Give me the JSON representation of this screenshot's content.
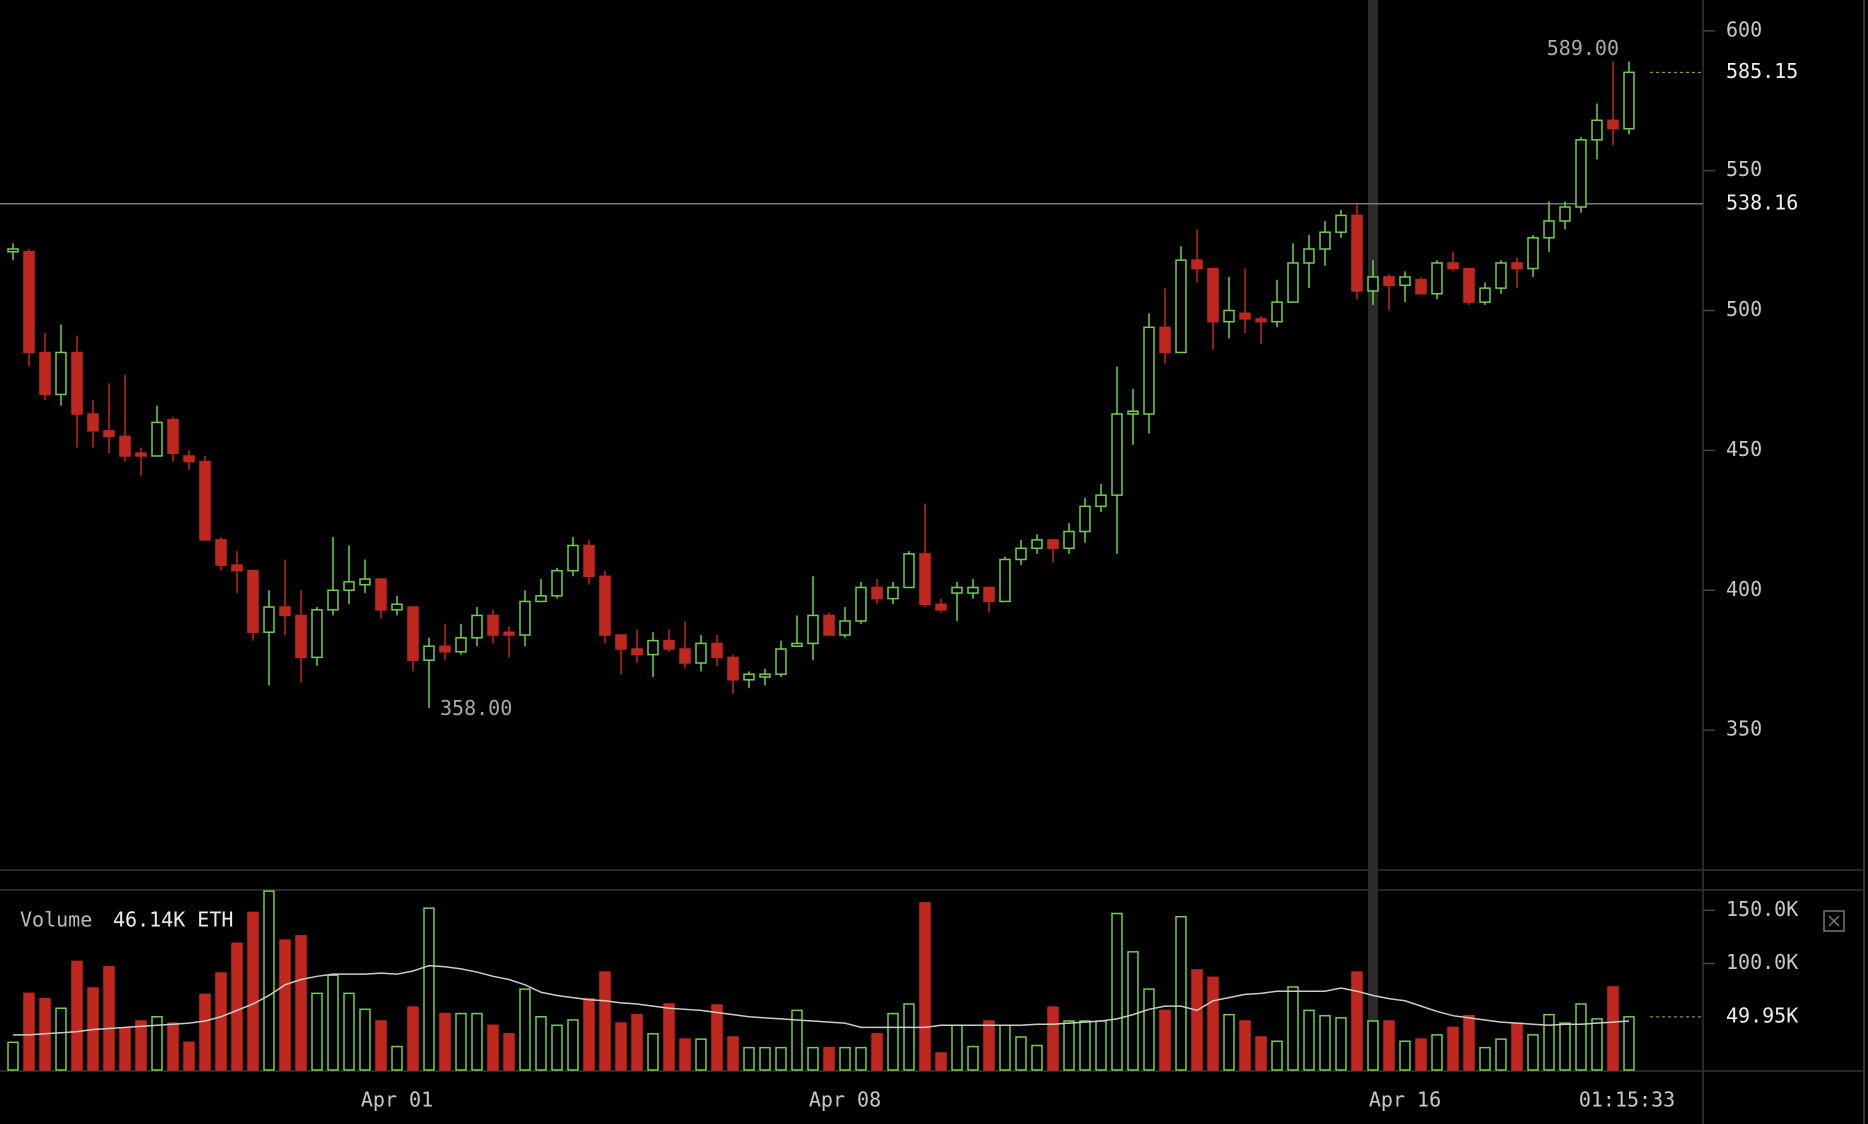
{
  "chart_data": {
    "type": "candlestick",
    "categories": [
      null,
      null,
      null,
      null,
      null,
      null,
      null,
      null,
      null,
      null,
      null,
      null,
      null,
      null,
      null,
      null,
      null,
      null,
      null,
      null,
      null,
      null,
      null,
      null,
      "Apr 01",
      null,
      null,
      null,
      null,
      null,
      null,
      null,
      null,
      null,
      null,
      null,
      null,
      null,
      null,
      null,
      null,
      null,
      null,
      null,
      null,
      null,
      null,
      null,
      null,
      null,
      null,
      null,
      "Apr 08",
      null,
      null,
      null,
      null,
      null,
      null,
      null,
      null,
      null,
      null,
      null,
      null,
      null,
      null,
      null,
      null,
      null,
      null,
      null,
      null,
      null,
      null,
      null,
      null,
      null,
      null,
      null,
      null,
      null,
      null,
      null,
      null,
      null,
      null,
      "Apr 16",
      null,
      null,
      null,
      null,
      null,
      null,
      null,
      null,
      null,
      null,
      null,
      null,
      null,
      null,
      null,
      null
    ],
    "candles": {
      "open": [
        521,
        521,
        485,
        470,
        485,
        463,
        457,
        455,
        449,
        448,
        461,
        448,
        446,
        418,
        409,
        407,
        385,
        394,
        391,
        376,
        393,
        400,
        402,
        404,
        393,
        394,
        375,
        380,
        378,
        383,
        391,
        385,
        384,
        396,
        398,
        407,
        416,
        405,
        384,
        379,
        377,
        382,
        379,
        374,
        381,
        376,
        368,
        369,
        370,
        380,
        381,
        391,
        384,
        389,
        401,
        397,
        401,
        413,
        395,
        399,
        399,
        401,
        396,
        411,
        415,
        418,
        415,
        421,
        430,
        434,
        463,
        463,
        494,
        485,
        518,
        515,
        496,
        499,
        497,
        496,
        503,
        517,
        522,
        528,
        534,
        507,
        512,
        509,
        511,
        506,
        517,
        515,
        503,
        508,
        517,
        515,
        526,
        532,
        537,
        561,
        568,
        565
      ],
      "high": [
        524,
        522,
        492,
        495,
        491,
        468,
        474,
        477,
        451,
        466,
        462,
        450,
        448,
        419,
        414,
        407,
        400,
        411,
        400,
        394,
        419,
        416,
        411,
        404,
        398,
        394,
        383,
        388,
        388,
        394,
        393,
        387,
        400,
        404,
        408,
        419,
        418,
        407,
        384,
        386,
        385,
        386,
        389,
        384,
        384,
        377,
        371,
        372,
        382,
        391,
        405,
        392,
        394,
        403,
        404,
        403,
        414,
        431,
        397,
        403,
        404,
        401,
        412,
        418,
        420,
        418,
        424,
        433,
        438,
        480,
        472,
        499,
        508,
        523,
        529,
        515,
        512,
        515,
        498,
        511,
        524,
        527,
        532,
        536,
        538,
        518,
        513,
        514,
        512,
        518,
        521,
        515,
        510,
        518,
        519,
        527,
        539,
        539,
        562,
        574,
        589,
        589
      ],
      "low": [
        518,
        480,
        468,
        466,
        451,
        451,
        449,
        446,
        441,
        448,
        446,
        443,
        418,
        407,
        399,
        382,
        366,
        384,
        367,
        373,
        391,
        395,
        399,
        390,
        391,
        371,
        358,
        375,
        377,
        380,
        381,
        376,
        380,
        396,
        397,
        405,
        402,
        381,
        370,
        374,
        369,
        378,
        372,
        371,
        373,
        363,
        365,
        366,
        369,
        380,
        375,
        384,
        383,
        388,
        395,
        395,
        401,
        394,
        392,
        389,
        397,
        392,
        396,
        409,
        413,
        410,
        413,
        417,
        428,
        413,
        452,
        456,
        481,
        485,
        510,
        486,
        490,
        492,
        488,
        494,
        503,
        508,
        516,
        526,
        504,
        502,
        500,
        503,
        506,
        504,
        514,
        502,
        502,
        506,
        508,
        512,
        521,
        529,
        535,
        554,
        559,
        563
      ],
      "close": [
        522,
        485,
        470,
        485,
        463,
        457,
        455,
        448,
        448,
        460,
        449,
        446,
        418,
        409,
        407,
        385,
        394,
        391,
        376,
        393,
        400,
        403,
        404,
        393,
        395,
        375,
        380,
        378,
        383,
        391,
        384,
        384,
        396,
        398,
        407,
        416,
        405,
        384,
        379,
        377,
        382,
        379,
        374,
        381,
        376,
        368,
        370,
        370,
        379,
        381,
        391,
        384,
        389,
        401,
        397,
        401,
        413,
        395,
        393,
        401,
        401,
        396,
        411,
        415,
        418,
        415,
        421,
        430,
        434,
        463,
        464,
        494,
        485,
        518,
        515,
        496,
        500,
        497,
        496,
        503,
        517,
        522,
        528,
        534,
        507,
        512,
        509,
        512,
        506,
        517,
        515,
        503,
        508,
        517,
        515,
        526,
        532,
        537,
        561,
        568,
        565,
        585.15
      ]
    },
    "up_color": "#6fd04a",
    "down_color": "#c0281f",
    "ylim": [
      300,
      611
    ],
    "yticks": [
      350,
      400,
      450,
      500,
      550,
      600
    ],
    "crosshair": {
      "index": 85,
      "price": 538.16
    },
    "annotations": [
      {
        "value": 589,
        "label": "589.00",
        "index": 100
      },
      {
        "value": 358,
        "label": "358.00",
        "index": 26
      }
    ],
    "volume": {
      "label": "Volume",
      "value_text": "46.14K ETH",
      "values": [
        26000,
        72000,
        67000,
        58000,
        102000,
        77000,
        97000,
        39000,
        46000,
        50000,
        44000,
        26000,
        71000,
        91000,
        119000,
        148000,
        168000,
        122000,
        126000,
        72000,
        89000,
        72000,
        57000,
        46000,
        22000,
        59000,
        152000,
        53000,
        53000,
        53000,
        42000,
        34000,
        76000,
        50000,
        42000,
        47000,
        67000,
        92000,
        44000,
        52000,
        34000,
        62000,
        29000,
        29000,
        61000,
        31000,
        21000,
        21000,
        21000,
        56000,
        21000,
        21000,
        21000,
        21000,
        34000,
        53000,
        62000,
        157000,
        16000,
        42000,
        22000,
        46000,
        42000,
        31000,
        23000,
        59000,
        46000,
        46000,
        46000,
        147000,
        111000,
        76000,
        56000,
        144000,
        94000,
        87000,
        52000,
        46000,
        31000,
        27000,
        78000,
        56000,
        51000,
        49000,
        92000,
        46000,
        46000,
        27000,
        29000,
        33000,
        40000,
        51000,
        21000,
        29000,
        44000,
        33000,
        52000,
        44000,
        62000,
        48000,
        78000,
        49950
      ],
      "ma": [
        33000,
        33000,
        34000,
        35000,
        36000,
        38000,
        39000,
        40000,
        41000,
        42000,
        43000,
        44000,
        46000,
        50000,
        56000,
        62000,
        70000,
        80000,
        85000,
        88000,
        90000,
        90000,
        90000,
        91000,
        90000,
        93000,
        98000,
        97000,
        95000,
        92000,
        88000,
        85000,
        80000,
        73000,
        70000,
        68000,
        66000,
        65000,
        63000,
        62000,
        60000,
        58000,
        57000,
        56000,
        54000,
        52000,
        50000,
        49000,
        48000,
        47000,
        46000,
        45000,
        44000,
        40000,
        40000,
        40000,
        40000,
        40000,
        42000,
        42000,
        42000,
        42000,
        42000,
        42000,
        43000,
        43000,
        44000,
        45000,
        46000,
        48000,
        52000,
        57000,
        60000,
        60000,
        56000,
        65000,
        68000,
        71000,
        72000,
        74000,
        74000,
        74000,
        74000,
        77000,
        74000,
        70000,
        67000,
        65000,
        60000,
        55000,
        51000,
        49000,
        47000,
        45000,
        44000,
        43000,
        42000,
        43000,
        43000,
        44000,
        45000,
        46000
      ],
      "ylim": [
        0,
        170000
      ],
      "yticks": [
        {
          "value": 100000,
          "label": "100.0K"
        },
        {
          "value": 150000,
          "label": "150.0K"
        }
      ],
      "last_label": {
        "value": 49950,
        "label": "49.95K"
      }
    },
    "countdown": "01:15:33"
  }
}
